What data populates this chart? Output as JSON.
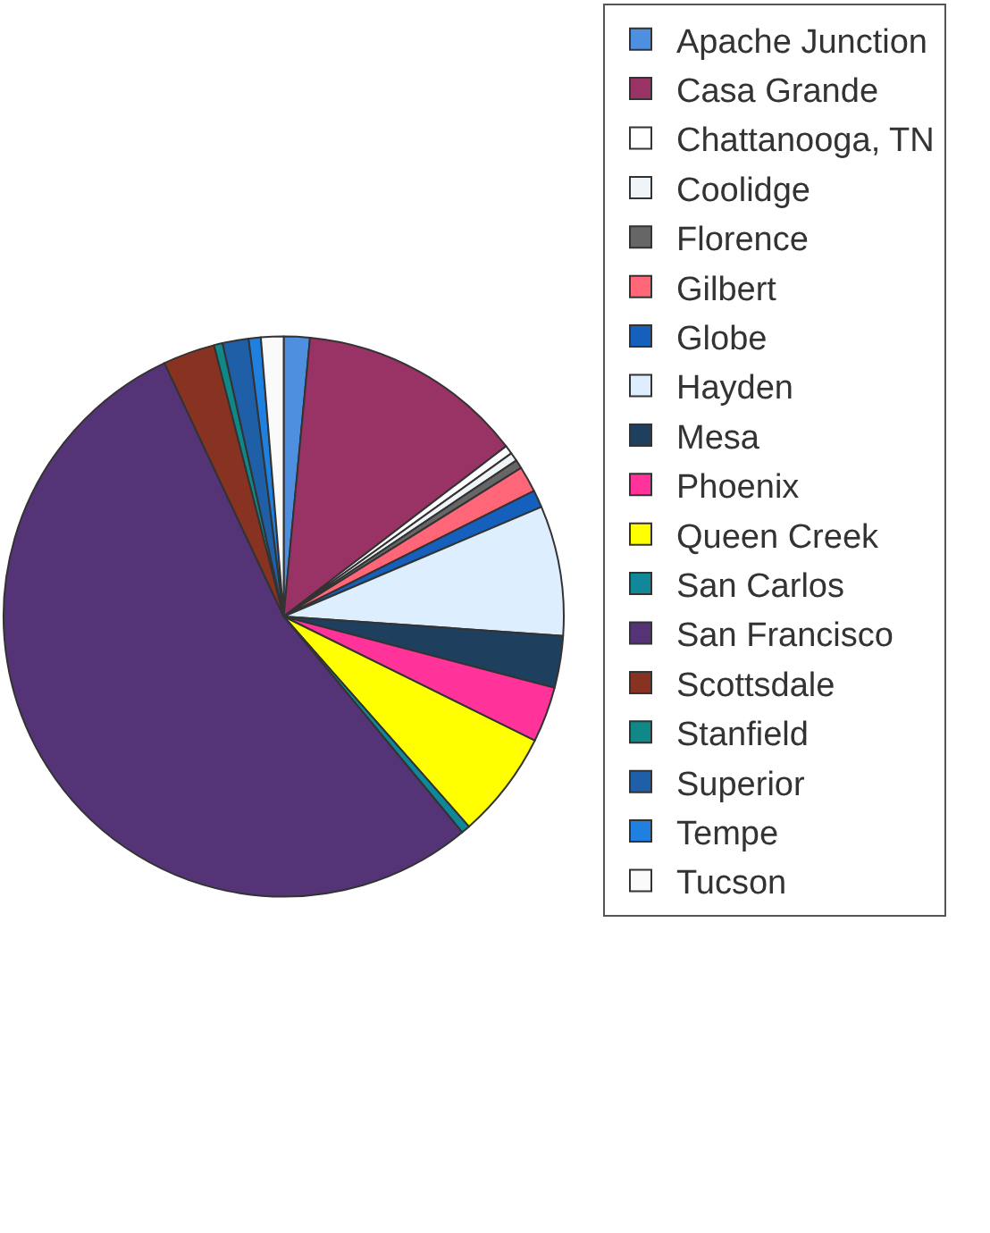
{
  "chart_data": {
    "type": "pie",
    "legend": "right",
    "categories": [
      "Apache Junction",
      "Casa Grande",
      "Chattanooga, TN",
      "Coolidge",
      "Florence",
      "Gilbert",
      "Globe",
      "Hayden",
      "Mesa",
      "Phoenix",
      "Queen Creek",
      "San Carlos",
      "San Francisco",
      "Scottsdale",
      "Stanfield",
      "Superior",
      "Tempe",
      "Tucson"
    ],
    "values": [
      1.5,
      13.1,
      0.5,
      0.5,
      0.5,
      1.5,
      1,
      7.5,
      3,
      3.2,
      6.2,
      0.5,
      54,
      3,
      0.5,
      1.5,
      0.7,
      1.3
    ],
    "colors": [
      "#4f8fe0",
      "#993366",
      "#ffffff",
      "#eef4f8",
      "#666666",
      "#ff6677",
      "#1560bd",
      "#ddeeff",
      "#1f3f5f",
      "#ff3399",
      "#ffff00",
      "#118899",
      "#553377",
      "#883322",
      "#118888",
      "#1f5fa8",
      "#2080e0",
      "#fafafa"
    ]
  }
}
